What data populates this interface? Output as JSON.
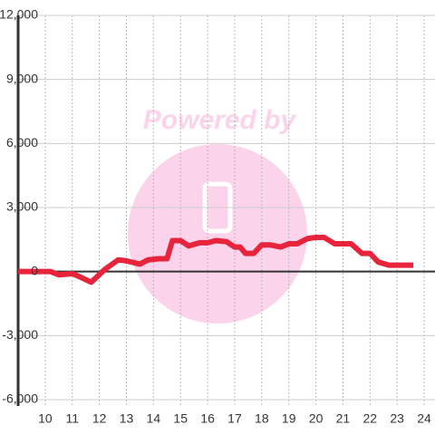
{
  "chart_data": {
    "type": "line",
    "watermark": "Powered by",
    "x": [
      9.0,
      9.5,
      10.0,
      10.2,
      10.5,
      11.0,
      11.2,
      11.7,
      12.2,
      12.7,
      13.0,
      13.5,
      13.8,
      14.2,
      14.5,
      14.7,
      15.0,
      15.3,
      15.7,
      16.0,
      16.3,
      16.7,
      17.0,
      17.2,
      17.4,
      17.7,
      18.0,
      18.3,
      18.7,
      19.0,
      19.3,
      19.7,
      20.0,
      20.3,
      20.7,
      21.0,
      21.3,
      21.7,
      22.0,
      22.3,
      22.7,
      23.0,
      23.6
    ],
    "series": [
      {
        "color": "#e8243c",
        "values": [
          0,
          0,
          0,
          0,
          -150,
          -100,
          -200,
          -500,
          100,
          550,
          500,
          350,
          550,
          600,
          600,
          1450,
          1450,
          1200,
          1350,
          1350,
          1450,
          1400,
          1150,
          1150,
          850,
          850,
          1250,
          1250,
          1150,
          1300,
          1300,
          1550,
          1600,
          1600,
          1300,
          1300,
          1300,
          850,
          850,
          450,
          300,
          300,
          300
        ]
      }
    ],
    "xlim": [
      9,
      24.4
    ],
    "xticks": [
      10,
      11,
      12,
      13,
      14,
      15,
      16,
      17,
      18,
      19,
      20,
      21,
      22,
      23,
      24
    ],
    "ylim": [
      -6000,
      12000
    ],
    "yticks": [
      {
        "value": -6000,
        "label": "-6,000"
      },
      {
        "value": -3000,
        "label": "-3,000"
      },
      0,
      {
        "value": 3000,
        "label": "3,000"
      },
      {
        "value": 6000,
        "label": "6,000"
      },
      {
        "value": 9000,
        "label": "9,000"
      },
      {
        "value": 12000,
        "label": "12,000"
      }
    ],
    "grid": true
  }
}
